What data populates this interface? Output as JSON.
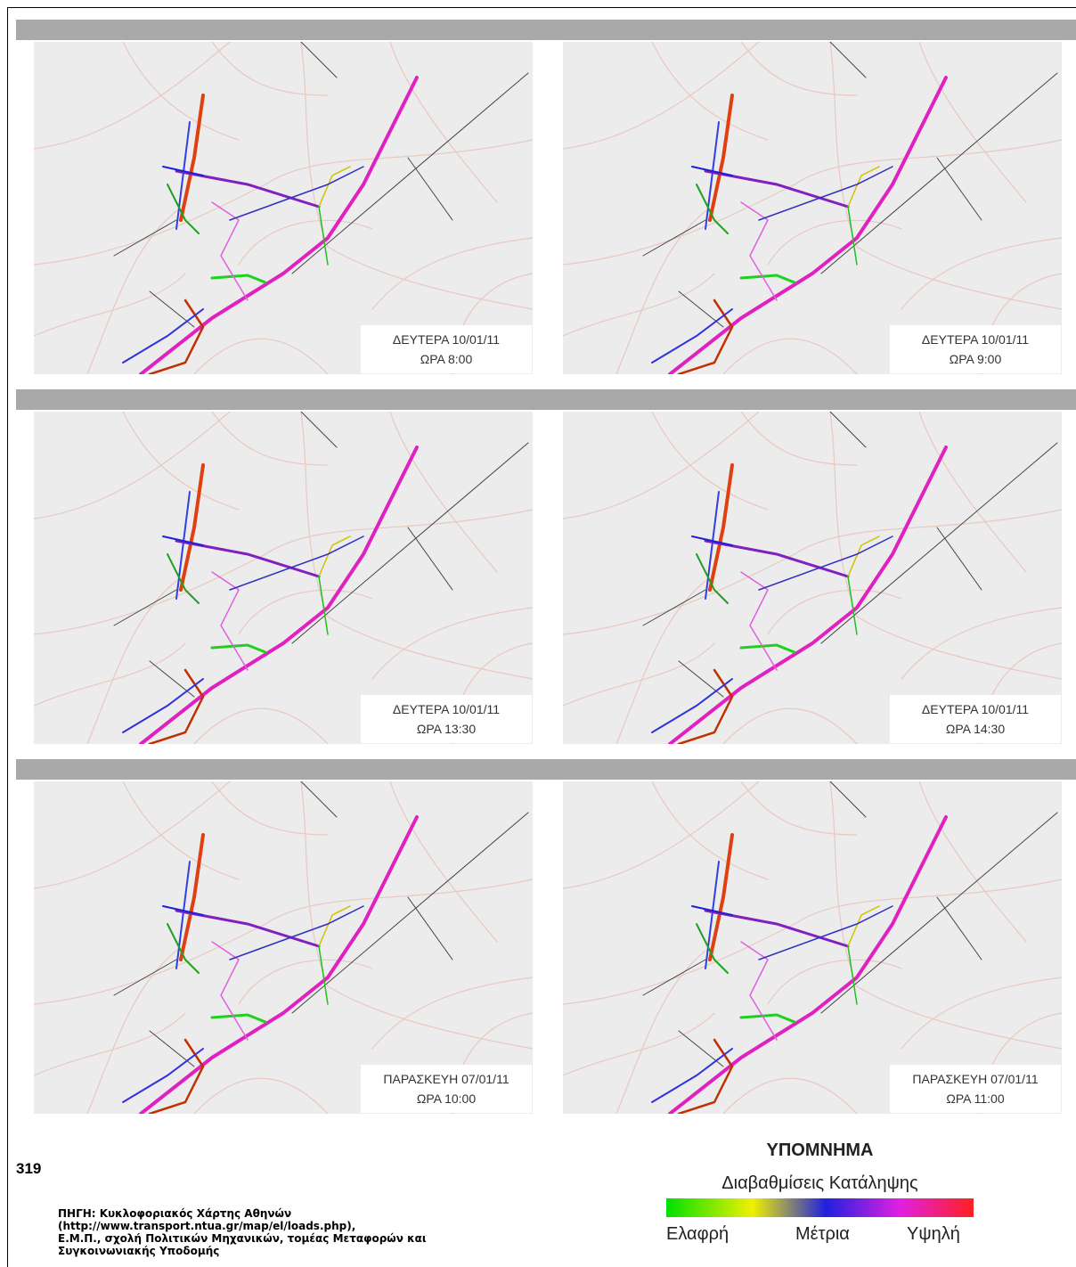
{
  "panels": [
    {
      "day": "ΔΕΥΤΕΡΑ 10/01/11",
      "time": "ΩΡΑ 8:00"
    },
    {
      "day": "ΔΕΥΤΕΡΑ 10/01/11",
      "time": "ΩΡΑ 9:00"
    },
    {
      "day": "ΔΕΥΤΕΡΑ 10/01/11",
      "time": "ΩΡΑ 13:30"
    },
    {
      "day": "ΔΕΥΤΕΡΑ 10/01/11",
      "time": "ΩΡΑ 14:30"
    },
    {
      "day": "ΠΑΡΑΣΚΕΥΗ 07/01/11",
      "time": "ΩΡΑ 10:00"
    },
    {
      "day": "ΠΑΡΑΣΚΕΥΗ 07/01/11",
      "time": "ΩΡΑ 11:00"
    }
  ],
  "page_number": "319",
  "legend": {
    "title": "ΥΠΟΜΝΗΜΑ",
    "subtitle": "Διαβαθμίσεις Κατάληψης",
    "low": "Ελαφρή",
    "mid": "Μέτρια",
    "high": "Υψηλή"
  },
  "source": [
    "ΠΗΓΗ: Κυκλοφοριακός Χάρτης Αθηνών",
    "(http://www.transport.ntua.gr/map/el/loads.php),",
    "Ε.Μ.Π., σχολή Πολιτικών Μηχανικών, τομέας Μεταφορών και",
    "Συγκοινωνιακής Υποδομής"
  ]
}
